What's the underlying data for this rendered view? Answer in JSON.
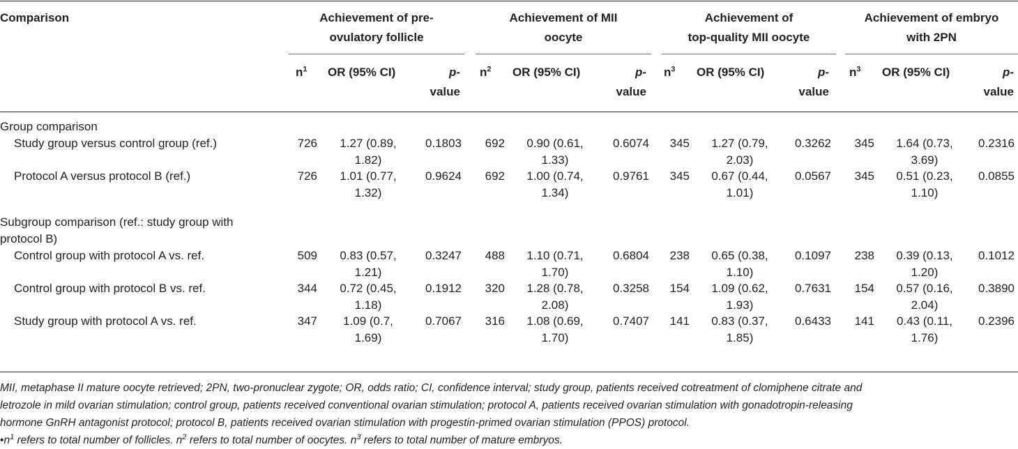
{
  "header": {
    "comparison": "Comparison",
    "groups": [
      {
        "line1": "Achievement of pre-",
        "line2": "ovulatory follicle"
      },
      {
        "line1": "Achievement of MII",
        "line2": "oocyte"
      },
      {
        "line1": "Achievement of",
        "line2": "top-quality MII oocyte"
      },
      {
        "line1": "Achievement of embryo",
        "line2": "with 2PN"
      }
    ],
    "sub": [
      {
        "n": "n",
        "sup": "1",
        "or": "OR (95% CI)",
        "p1": "p-",
        "p2": "value"
      },
      {
        "n": "n",
        "sup": "2",
        "or": "OR (95% CI)",
        "p1": "p-",
        "p2": "value"
      },
      {
        "n": "n",
        "sup": "3",
        "or": "OR (95% CI)",
        "p1": "p-",
        "p2": "value"
      },
      {
        "n": "n",
        "sup": "3",
        "or": "OR (95% CI)",
        "p1": "p-",
        "p2": "value"
      }
    ]
  },
  "sections": {
    "group": "Group comparison",
    "subgroup_line1": "Subgroup comparison (ref.: study group with",
    "subgroup_line2": "protocol B)"
  },
  "rows": [
    {
      "label": "Study group versus control group (ref.)",
      "cells": [
        {
          "n": "726",
          "or1": "1.27 (0.89,",
          "or2": "1.82)",
          "p": "0.1803"
        },
        {
          "n": "692",
          "or1": "0.90 (0.61,",
          "or2": "1.33)",
          "p": "0.6074"
        },
        {
          "n": "345",
          "or1": "1.27 (0.79,",
          "or2": "2.03)",
          "p": "0.3262"
        },
        {
          "n": "345",
          "or1": "1.64 (0.73,",
          "or2": "3.69)",
          "p": "0.2316"
        }
      ]
    },
    {
      "label": "Protocol A versus protocol B (ref.)",
      "cells": [
        {
          "n": "726",
          "or1": "1.01 (0.77,",
          "or2": "1.32)",
          "p": "0.9624"
        },
        {
          "n": "692",
          "or1": "1.00 (0.74,",
          "or2": "1.34)",
          "p": "0.9761"
        },
        {
          "n": "345",
          "or1": "0.67 (0.44,",
          "or2": "1.01)",
          "p": "0.0567"
        },
        {
          "n": "345",
          "or1": "0.51 (0.23,",
          "or2": "1.10)",
          "p": "0.0855"
        }
      ]
    },
    {
      "label": "Control group with protocol A vs. ref.",
      "cells": [
        {
          "n": "509",
          "or1": "0.83 (0.57,",
          "or2": "1.21)",
          "p": "0.3247"
        },
        {
          "n": "488",
          "or1": "1.10 (0.71,",
          "or2": "1.70)",
          "p": "0.6804"
        },
        {
          "n": "238",
          "or1": "0.65 (0.38,",
          "or2": "1.10)",
          "p": "0.1097"
        },
        {
          "n": "238",
          "or1": "0.39 (0.13,",
          "or2": "1.20)",
          "p": "0.1012"
        }
      ]
    },
    {
      "label": "Control group with protocol B vs. ref.",
      "cells": [
        {
          "n": "344",
          "or1": "0.72 (0.45,",
          "or2": "1.18)",
          "p": "0.1912"
        },
        {
          "n": "320",
          "or1": "1.28 (0.78,",
          "or2": "2.08)",
          "p": "0.3258"
        },
        {
          "n": "154",
          "or1": "1.09 (0.62,",
          "or2": "1.93)",
          "p": "0.7631"
        },
        {
          "n": "154",
          "or1": "0.57 (0.16,",
          "or2": "2.04)",
          "p": "0.3890"
        }
      ]
    },
    {
      "label": "Study group with protocol A vs. ref.",
      "cells": [
        {
          "n": "347",
          "or1": "1.09 (0.7,",
          "or2": "1.69)",
          "p": "0.7067"
        },
        {
          "n": "316",
          "or1": "1.08 (0.69,",
          "or2": "1.70)",
          "p": "0.7407"
        },
        {
          "n": "141",
          "or1": "0.83 (0.37,",
          "or2": "1.85)",
          "p": "0.6433"
        },
        {
          "n": "141",
          "or1": "0.43 (0.11,",
          "or2": "1.76)",
          "p": "0.2396"
        }
      ]
    }
  ],
  "footnotes": {
    "line1": "MII, metaphase II mature oocyte retrieved; 2PN, two-pronuclear zygote; OR, odds ratio; CI, confidence interval; study group, patients received cotreatment of clomiphene citrate and",
    "line2": "letrozole in mild ovarian stimulation; control group, patients received conventional ovarian stimulation; protocol A, patients received ovarian stimulation with gonadotropin-releasing",
    "line3": "hormone GnRH antagonist protocol; protocol B, patients received ovarian stimulation with progestin-primed ovarian stimulation (PPOS) protocol.",
    "bullet": "•",
    "n1": "n",
    "n1_sup": "1",
    "n1_text": " refers to total number of follicles. ",
    "n2": "n",
    "n2_sup": "2",
    "n2_text": " refers to total number of oocytes. ",
    "n3": "n",
    "n3_sup": "3",
    "n3_text": " refers to total number of mature embryos."
  }
}
